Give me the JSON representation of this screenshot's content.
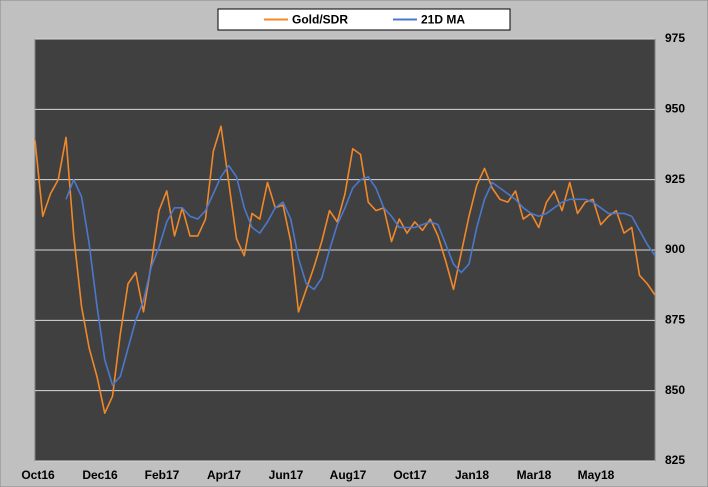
{
  "chart_data": {
    "type": "line",
    "categories": [
      "Oct16",
      null,
      null,
      null,
      null,
      null,
      null,
      null,
      "Dec16",
      null,
      null,
      null,
      null,
      null,
      null,
      null,
      "Feb17",
      null,
      null,
      null,
      null,
      null,
      null,
      null,
      "Apr17",
      null,
      null,
      null,
      null,
      null,
      null,
      null,
      "Jun17",
      null,
      null,
      null,
      null,
      null,
      null,
      null,
      "Aug17",
      null,
      null,
      null,
      null,
      null,
      null,
      null,
      "Oct17",
      null,
      null,
      null,
      null,
      null,
      null,
      null,
      "Jan18",
      null,
      null,
      null,
      null,
      null,
      null,
      null,
      "Mar18",
      null,
      null,
      null,
      null,
      null,
      null,
      null,
      "May18",
      null,
      null,
      null,
      null,
      null,
      null,
      null,
      null
    ],
    "series": [
      {
        "name": "Gold/SDR",
        "color": "#f0882a",
        "values": [
          939,
          912,
          920,
          925,
          940,
          905,
          880,
          865,
          855,
          842,
          848,
          870,
          888,
          892,
          878,
          895,
          914,
          921,
          905,
          915,
          905,
          905,
          911,
          935,
          944,
          924,
          904,
          898,
          913,
          911,
          924,
          915,
          916,
          903,
          878,
          886,
          894,
          903,
          914,
          910,
          920,
          936,
          934,
          917,
          914,
          915,
          903,
          911,
          906,
          910,
          907,
          911,
          905,
          896,
          886,
          899,
          912,
          923,
          929,
          922,
          918,
          917,
          921,
          911,
          913,
          908,
          917,
          921,
          914,
          924,
          913,
          917,
          918,
          909,
          912,
          914,
          906,
          908,
          891,
          888,
          884
        ]
      },
      {
        "name": "21D MA",
        "color": "#4a78cc",
        "values": [
          null,
          null,
          null,
          null,
          918,
          925,
          919,
          902,
          880,
          861,
          852,
          855,
          865,
          875,
          882,
          894,
          901,
          910,
          915,
          915,
          912,
          911,
          914,
          920,
          926,
          930,
          926,
          915,
          908,
          906,
          910,
          915,
          917,
          911,
          897,
          888,
          886,
          890,
          900,
          909,
          915,
          922,
          925,
          926,
          922,
          915,
          912,
          908,
          908,
          908,
          909,
          910,
          909,
          902,
          895,
          892,
          895,
          908,
          918,
          924,
          922,
          920,
          918,
          915,
          913,
          912,
          913,
          915,
          917,
          918,
          918,
          918,
          917,
          915,
          913,
          913,
          913,
          912,
          907,
          902,
          898
        ]
      }
    ],
    "ylim": [
      825,
      975
    ],
    "yticks": [
      825,
      850,
      875,
      900,
      925,
      950,
      975
    ],
    "grid": true,
    "y_axis_side": "right",
    "legend": "top"
  }
}
